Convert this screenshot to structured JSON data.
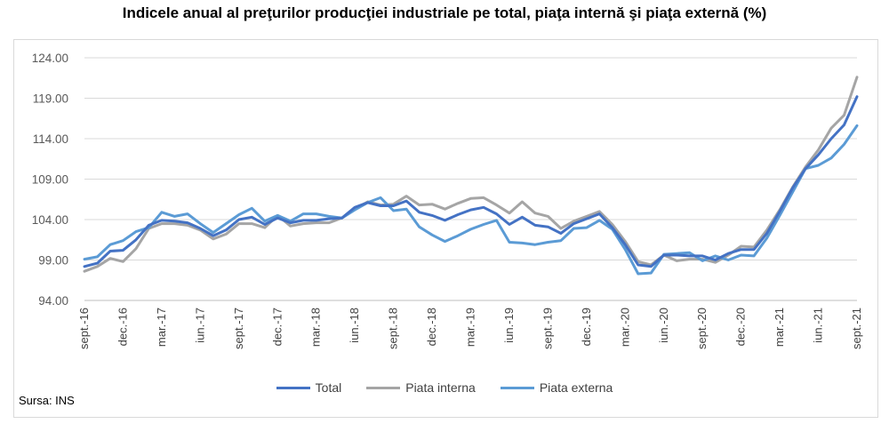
{
  "title": "Indicele anual al preţurilor producţiei industriale pe total, piaţa internă şi piaţa externă (%)",
  "source": "Sursa: INS",
  "legend": [
    {
      "name": "Total",
      "color": "#4472c4"
    },
    {
      "name": "Piata interna",
      "color": "#a5a5a5"
    },
    {
      "name": "Piata externa",
      "color": "#5b9bd5"
    }
  ],
  "chart_data": {
    "type": "line",
    "title": "Indicele anual al preţurilor producţiei industriale pe total, piaţa internă şi piaţa externă (%)",
    "ylim": [
      94,
      124
    ],
    "yticks": [
      "94.00",
      "99.00",
      "104.00",
      "109.00",
      "114.00",
      "119.00",
      "124.00"
    ],
    "grid": true,
    "legend_position": "bottom",
    "x": [
      "sept.-16",
      "oct.-16",
      "nov.-16",
      "dec.-16",
      "ian.-17",
      "feb.-17",
      "mar.-17",
      "apr.-17",
      "mai.-17",
      "iun.-17",
      "iul.-17",
      "aug.-17",
      "sept.-17",
      "oct.-17",
      "nov.-17",
      "dec.-17",
      "ian.-18",
      "feb.-18",
      "mar.-18",
      "apr.-18",
      "mai.-18",
      "iun.-18",
      "iul.-18",
      "aug.-18",
      "sept.-18",
      "oct.-18",
      "nov.-18",
      "dec.-18",
      "ian.-19",
      "feb.-19",
      "mar.-19",
      "apr.-19",
      "mai.-19",
      "iun.-19",
      "iul.-19",
      "aug.-19",
      "sept.-19",
      "oct.-19",
      "nov.-19",
      "dec.-19",
      "ian.-20",
      "feb.-20",
      "mar.-20",
      "apr.-20",
      "mai.-20",
      "iun.-20",
      "iul.-20",
      "aug.-20",
      "sept.-20",
      "oct.-20",
      "nov.-20",
      "dec.-20",
      "ian.-21",
      "feb.-21",
      "mar.-21",
      "apr.-21",
      "mai.-21",
      "iun.-21",
      "iul.-21",
      "aug.-21",
      "sept.-21"
    ],
    "xticks_shown": [
      "sept.-16",
      "dec.-16",
      "mar.-17",
      "iun.-17",
      "sept.-17",
      "dec.-17",
      "mar.-18",
      "iun.-18",
      "sept.-18",
      "dec.-18",
      "mar.-19",
      "iun.-19",
      "sept.-19",
      "dec.-19",
      "mar.-20",
      "iun.-20",
      "sept.-20",
      "dec.-20",
      "mar.-21",
      "iun.-21",
      "sept.-21"
    ],
    "series": [
      {
        "name": "Total",
        "color": "#4472c4",
        "values": [
          98.2,
          98.6,
          100.1,
          100.2,
          101.5,
          103.3,
          103.9,
          103.8,
          103.6,
          102.9,
          102.0,
          102.7,
          104.0,
          104.3,
          103.4,
          104.2,
          103.6,
          103.9,
          103.9,
          104.1,
          104.2,
          105.5,
          106.1,
          105.7,
          105.7,
          106.3,
          104.9,
          104.5,
          103.9,
          104.6,
          105.2,
          105.5,
          104.7,
          103.4,
          104.3,
          103.3,
          103.1,
          102.3,
          103.5,
          104.1,
          104.7,
          103.0,
          100.9,
          98.4,
          98.2,
          99.6,
          99.6,
          99.5,
          99.5,
          99.0,
          99.8,
          100.3,
          100.3,
          102.3,
          105.0,
          107.9,
          110.3,
          112.0,
          114.0,
          115.7,
          119.2
        ]
      },
      {
        "name": "Piata interna",
        "color": "#a5a5a5",
        "values": [
          97.6,
          98.2,
          99.2,
          98.8,
          100.4,
          102.9,
          103.5,
          103.5,
          103.3,
          102.7,
          101.6,
          102.2,
          103.5,
          103.5,
          103.0,
          104.5,
          103.2,
          103.5,
          103.6,
          103.6,
          104.2,
          105.3,
          106.2,
          105.8,
          105.9,
          106.9,
          105.8,
          105.9,
          105.3,
          106.0,
          106.6,
          106.7,
          105.8,
          104.8,
          106.2,
          104.8,
          104.4,
          102.9,
          103.8,
          104.4,
          105.0,
          103.4,
          101.3,
          98.8,
          98.4,
          99.6,
          98.9,
          99.1,
          99.1,
          98.7,
          99.6,
          100.7,
          100.6,
          102.7,
          105.2,
          108.0,
          110.5,
          112.6,
          115.3,
          116.9,
          121.6
        ]
      },
      {
        "name": "Piata externa",
        "color": "#5b9bd5",
        "values": [
          99.1,
          99.4,
          100.9,
          101.4,
          102.5,
          103.0,
          104.9,
          104.4,
          104.7,
          103.5,
          102.4,
          103.5,
          104.6,
          105.4,
          103.8,
          104.5,
          103.8,
          104.7,
          104.7,
          104.4,
          104.2,
          105.2,
          106.1,
          106.7,
          105.1,
          105.3,
          103.1,
          102.1,
          101.3,
          102.0,
          102.8,
          103.4,
          103.9,
          101.2,
          101.1,
          100.9,
          101.2,
          101.4,
          102.9,
          103.0,
          103.9,
          102.8,
          100.3,
          97.3,
          97.4,
          99.7,
          99.8,
          99.9,
          98.9,
          99.5,
          99.0,
          99.6,
          99.5,
          101.7,
          104.5,
          107.4,
          110.3,
          110.7,
          111.6,
          113.3,
          115.6
        ]
      }
    ]
  }
}
